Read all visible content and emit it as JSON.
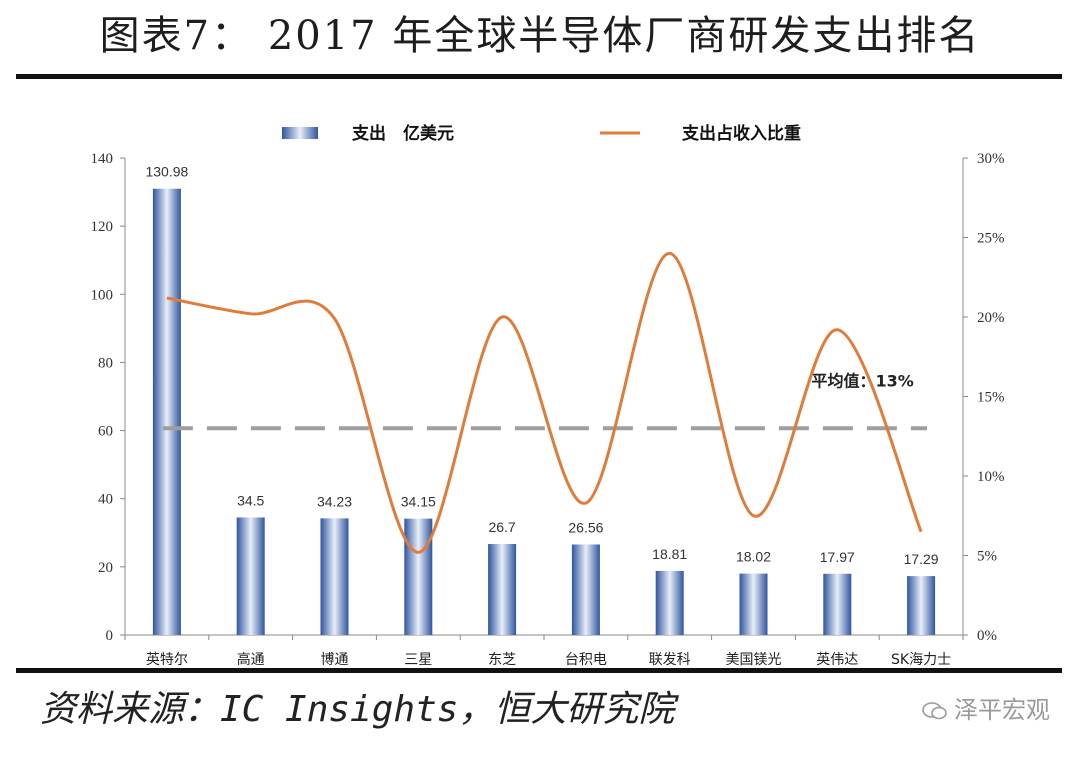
{
  "title": "图表7： 2017 年全球半导体厂商研发支出排名",
  "source": "资料来源：IC Insights，恒大研究院",
  "watermark": "泽平宏观",
  "chart_data": {
    "type": "bar",
    "categories": [
      "英特尔",
      "高通",
      "博通",
      "三星",
      "东芝",
      "台积电",
      "联发科",
      "美国镁光",
      "英伟达",
      "SK海力士"
    ],
    "series": [
      {
        "name": "支出　亿美元",
        "type": "bar",
        "axis": "left",
        "values": [
          130.98,
          34.5,
          34.23,
          34.15,
          26.7,
          26.56,
          18.81,
          18.02,
          17.97,
          17.29
        ],
        "data_labels": [
          "130.98",
          "34.5",
          "34.23",
          "34.15",
          "26.7",
          "26.56",
          "18.81",
          "18.02",
          "17.97",
          "17.29"
        ]
      },
      {
        "name": "支出占收入比重",
        "type": "line",
        "axis": "right",
        "smooth": true,
        "values": [
          21.2,
          20.2,
          19.9,
          5.2,
          20.0,
          8.3,
          24.0,
          7.5,
          19.2,
          6.5
        ]
      }
    ],
    "reference_line": {
      "value": 13,
      "axis": "right",
      "style": "dashed",
      "label": "平均值：13%"
    },
    "y_left": {
      "min": 0,
      "max": 140,
      "ticks": [
        0,
        20,
        40,
        60,
        80,
        100,
        120,
        140
      ]
    },
    "y_right": {
      "min": 0,
      "max": 30,
      "ticks": [
        "0%",
        "5%",
        "10%",
        "15%",
        "20%",
        "25%",
        "30%"
      ]
    },
    "legend_position": "top-center",
    "grid": false,
    "colors": {
      "bar": "#3a63a8",
      "line": "#e07b39",
      "reference": "#9e9e9e"
    }
  }
}
